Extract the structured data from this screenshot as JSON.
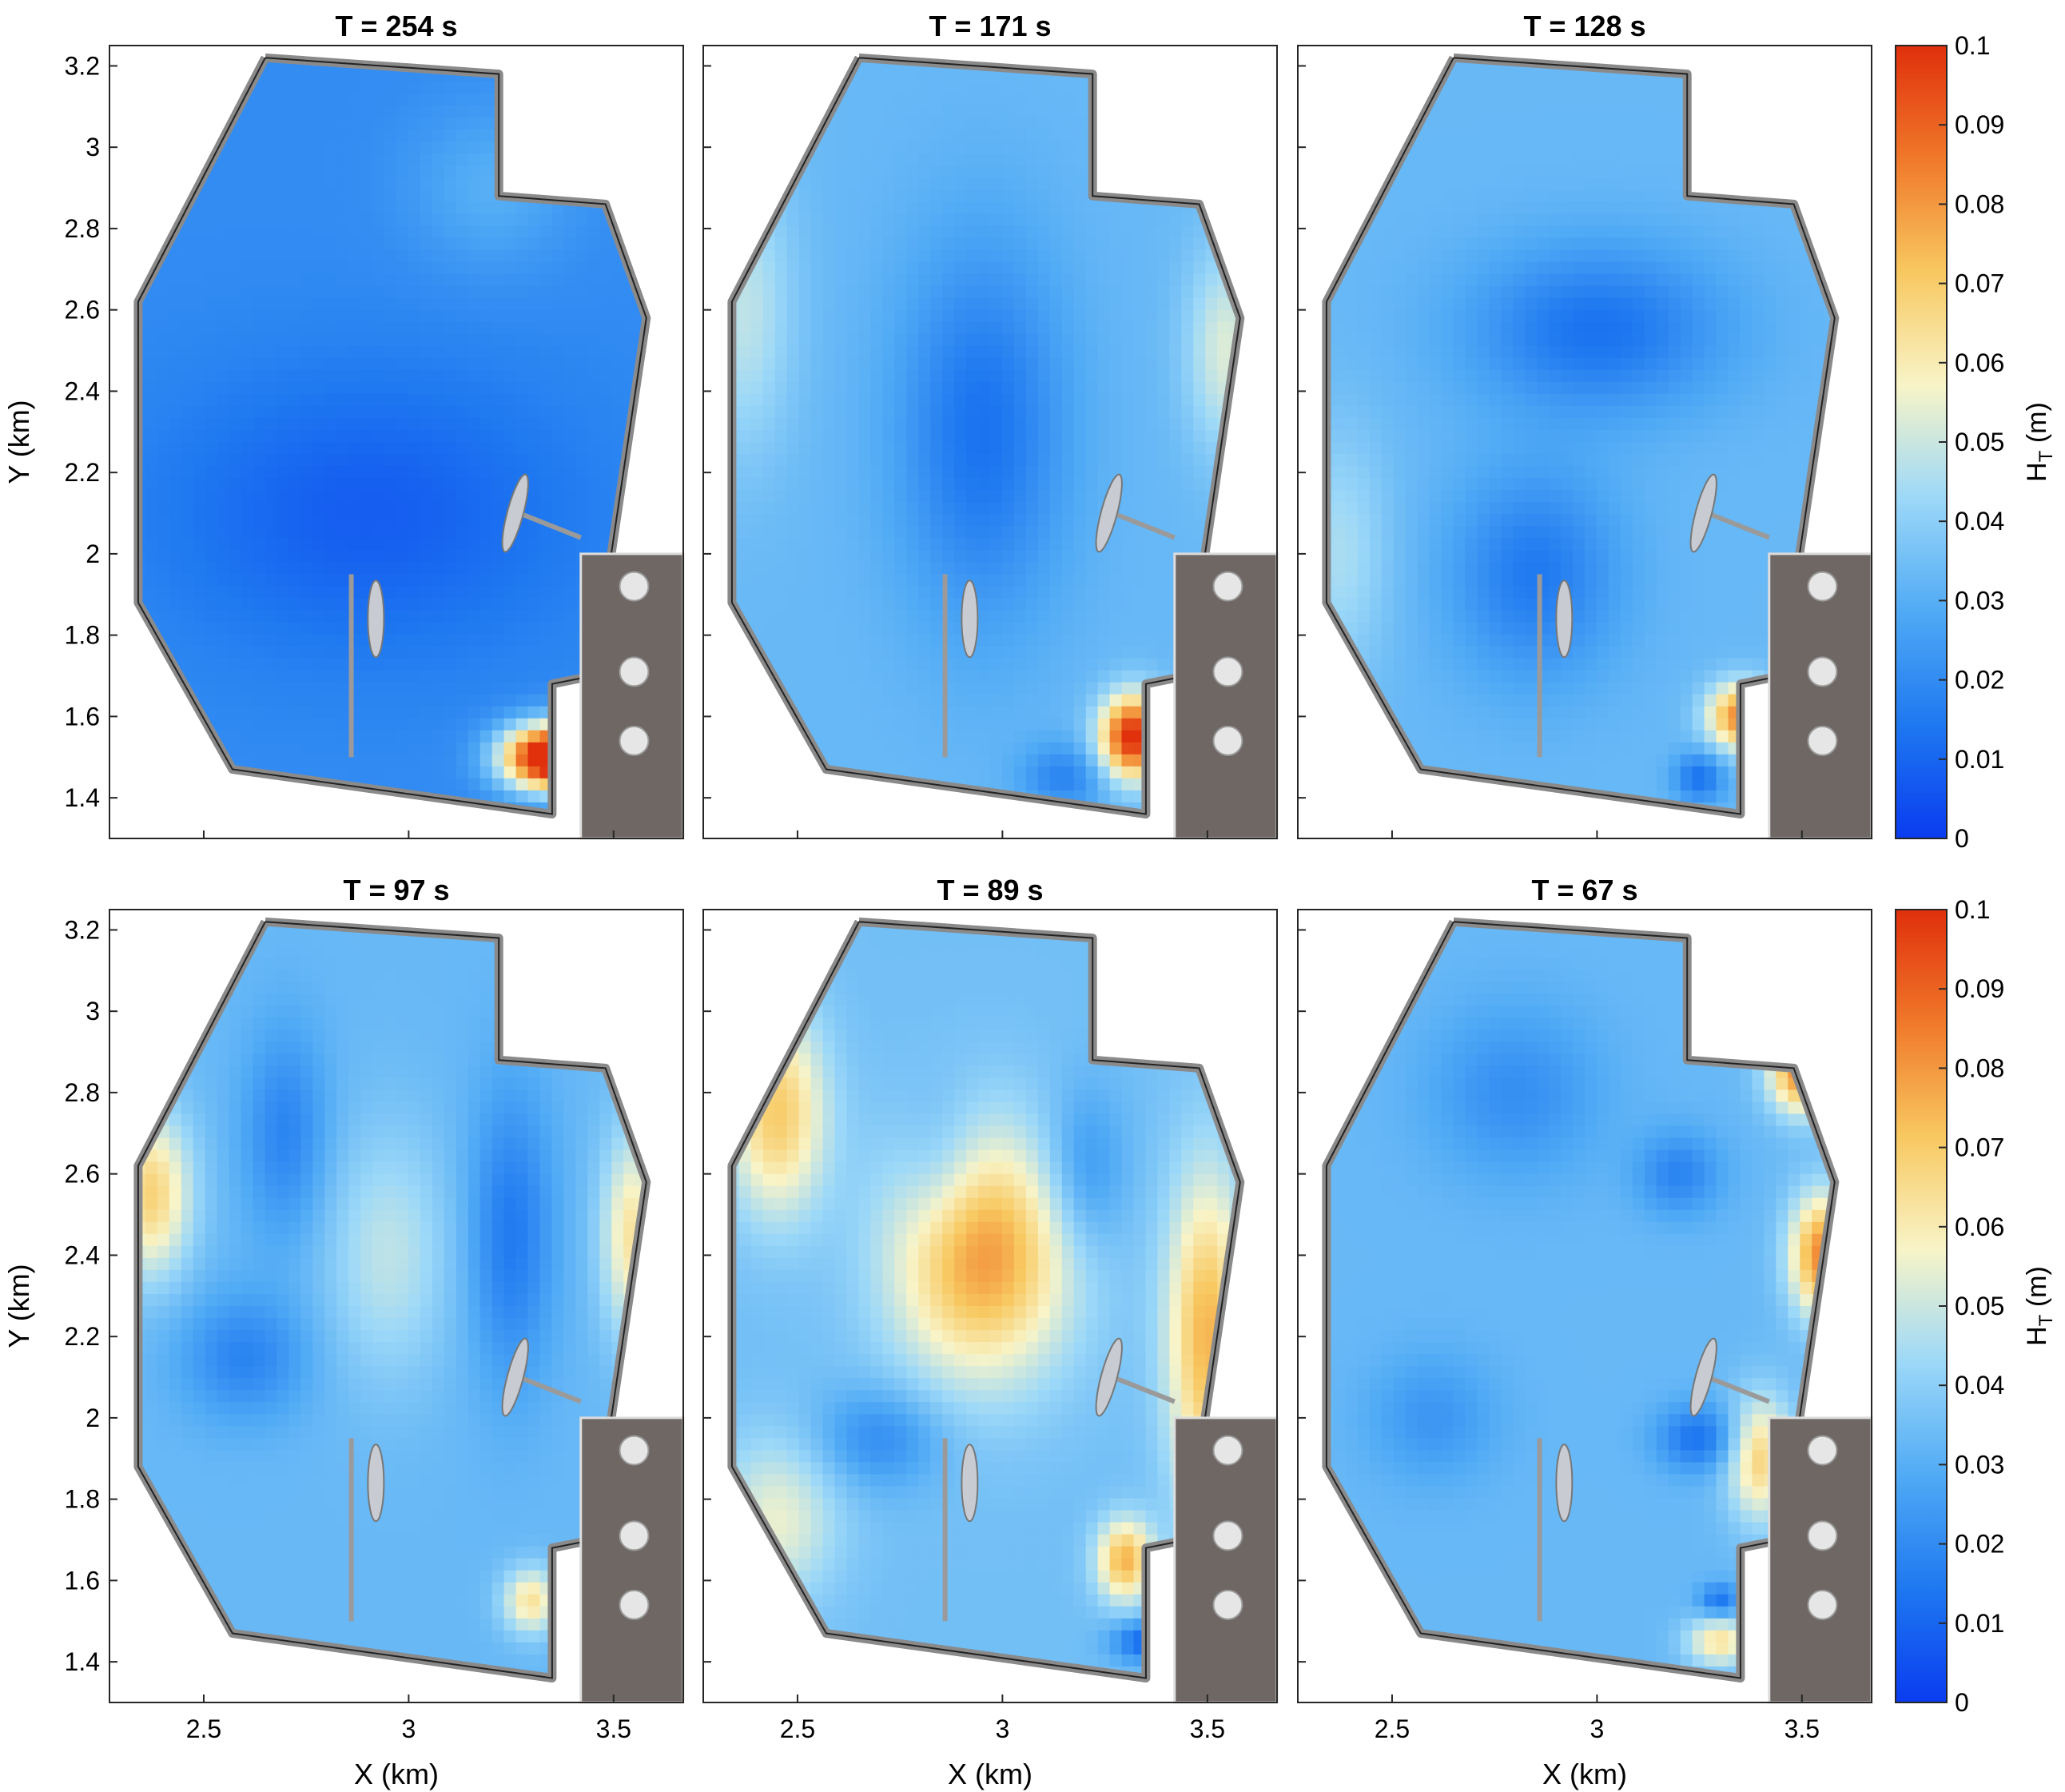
{
  "figure": {
    "xlabel": "X (km)",
    "ylabel": "Y (km)",
    "colorbar_label_main": "H",
    "colorbar_label_sub": "T",
    "colorbar_label_unit": " (m)"
  },
  "chart_data": {
    "type": "heatmap",
    "xlim": [
      2.27,
      3.67
    ],
    "ylim": [
      1.3,
      3.25
    ],
    "x_ticks": [
      2.5,
      3,
      3.5
    ],
    "x_tick_labels": [
      "2.5",
      "3",
      "3.5"
    ],
    "y_ticks": [
      1.4,
      1.6,
      1.8,
      2,
      2.2,
      2.4,
      2.6,
      2.8,
      3,
      3.2
    ],
    "y_tick_labels": [
      "1.4",
      "1.6",
      "1.8",
      "2",
      "2.2",
      "2.4",
      "2.6",
      "2.8",
      "3",
      "3.2"
    ],
    "colorbar": {
      "range": [
        0,
        0.1
      ],
      "ticks": [
        "0",
        "0.01",
        "0.02",
        "0.03",
        "0.04",
        "0.05",
        "0.06",
        "0.07",
        "0.08",
        "0.09",
        "0.1"
      ],
      "colors": [
        "#0a3cf0",
        "#1e78f0",
        "#50aaf5",
        "#9cd8f8",
        "#f8f4c8",
        "#f8c860",
        "#f0782a",
        "#e0300c"
      ]
    },
    "outline_km": [
      [
        2.65,
        3.22
      ],
      [
        2.34,
        2.62
      ],
      [
        2.34,
        1.88
      ],
      [
        2.57,
        1.47
      ],
      [
        3.35,
        1.36
      ],
      [
        3.35,
        1.68
      ],
      [
        3.45,
        1.7
      ],
      [
        3.58,
        2.58
      ],
      [
        3.48,
        2.86
      ],
      [
        3.22,
        2.88
      ],
      [
        3.22,
        3.18
      ],
      [
        2.65,
        3.22
      ]
    ],
    "panels": [
      {
        "title": "T = 254 s",
        "base": 0.02,
        "blobs": [
          [
            3.35,
            1.5,
            0.1,
            0.12,
            0.08
          ],
          [
            2.9,
            2.1,
            -0.012,
            0.5,
            0.35
          ],
          [
            3.2,
            2.9,
            0.01,
            0.2,
            0.2
          ]
        ]
      },
      {
        "title": "T = 171 s",
        "base": 0.033,
        "blobs": [
          [
            2.95,
            2.3,
            -0.02,
            0.2,
            0.45
          ],
          [
            3.32,
            1.55,
            0.07,
            0.08,
            0.1
          ],
          [
            2.37,
            2.6,
            0.015,
            0.12,
            0.35
          ],
          [
            3.55,
            2.5,
            0.02,
            0.1,
            0.25
          ],
          [
            3.15,
            1.45,
            -0.015,
            0.1,
            0.08
          ]
        ]
      },
      {
        "title": "T = 128 s",
        "base": 0.033,
        "blobs": [
          [
            3,
            2.55,
            -0.02,
            0.3,
            0.2
          ],
          [
            2.85,
            1.95,
            -0.018,
            0.2,
            0.25
          ],
          [
            2.37,
            2.0,
            0.012,
            0.12,
            0.3
          ],
          [
            3.35,
            1.6,
            0.05,
            0.08,
            0.08
          ],
          [
            3.25,
            1.45,
            -0.02,
            0.06,
            0.06
          ]
        ]
      },
      {
        "title": "T = 97 s",
        "base": 0.033,
        "blobs": [
          [
            2.37,
            2.55,
            0.035,
            0.1,
            0.2
          ],
          [
            3.55,
            2.45,
            0.03,
            0.08,
            0.25
          ],
          [
            2.7,
            2.7,
            -0.015,
            0.1,
            0.25
          ],
          [
            3.25,
            2.45,
            -0.018,
            0.1,
            0.35
          ],
          [
            2.95,
            2.4,
            0.015,
            0.15,
            0.3
          ],
          [
            2.6,
            2.15,
            -0.015,
            0.15,
            0.15
          ],
          [
            3.3,
            1.55,
            0.03,
            0.07,
            0.08
          ]
        ]
      },
      {
        "title": "T = 89 s",
        "base": 0.035,
        "blobs": [
          [
            2.95,
            2.4,
            0.045,
            0.22,
            0.3
          ],
          [
            2.45,
            2.75,
            0.035,
            0.12,
            0.25
          ],
          [
            3.5,
            2.2,
            0.04,
            0.1,
            0.4
          ],
          [
            2.45,
            1.75,
            0.02,
            0.15,
            0.2
          ],
          [
            2.85,
            2.6,
            -0.01,
            0.1,
            0.2
          ],
          [
            2.7,
            1.95,
            -0.015,
            0.15,
            0.12
          ],
          [
            3.2,
            2.6,
            -0.015,
            0.1,
            0.2
          ],
          [
            3.3,
            1.65,
            0.04,
            0.07,
            0.1
          ],
          [
            3.35,
            1.45,
            -0.025,
            0.08,
            0.05
          ]
        ]
      },
      {
        "title": "T = 67 s",
        "base": 0.033,
        "blobs": [
          [
            3.5,
            2.85,
            0.05,
            0.08,
            0.1
          ],
          [
            3.55,
            2.4,
            0.05,
            0.08,
            0.15
          ],
          [
            3.4,
            1.9,
            0.035,
            0.08,
            0.15
          ],
          [
            2.8,
            2.8,
            -0.012,
            0.2,
            0.2
          ],
          [
            3.2,
            2.6,
            -0.015,
            0.1,
            0.1
          ],
          [
            3.25,
            1.95,
            -0.02,
            0.1,
            0.08
          ],
          [
            2.6,
            2.0,
            -0.01,
            0.15,
            0.15
          ],
          [
            3.3,
            1.45,
            0.03,
            0.08,
            0.06
          ],
          [
            3.3,
            1.55,
            -0.02,
            0.05,
            0.04
          ]
        ]
      }
    ]
  }
}
